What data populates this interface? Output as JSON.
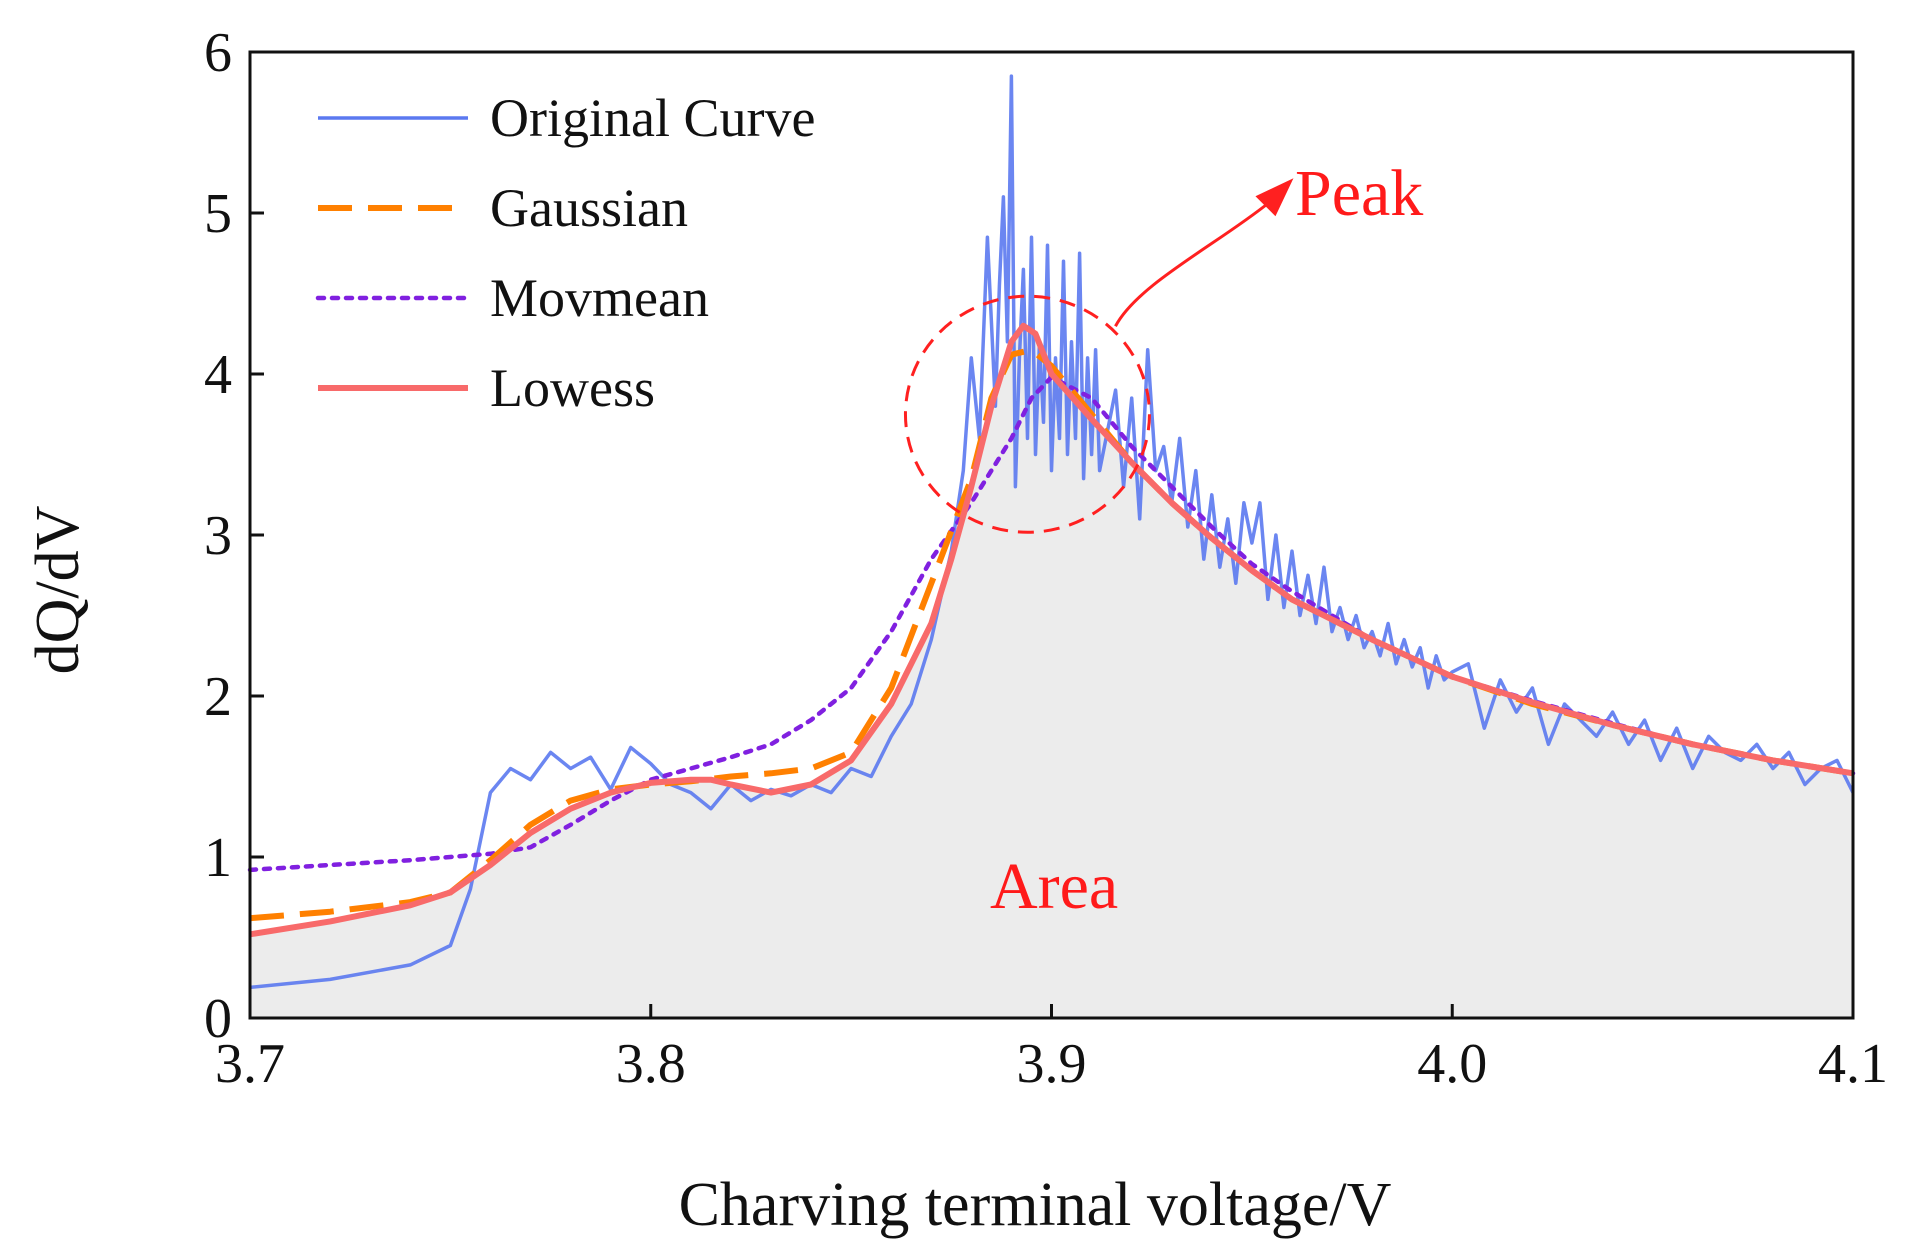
{
  "chart_data": {
    "type": "line",
    "title": "",
    "xlabel": "Charving terminal voltage/V",
    "ylabel": "dQ/dV",
    "xlim": [
      3.7,
      4.1
    ],
    "ylim": [
      0,
      6
    ],
    "xticks": [
      3.7,
      3.8,
      3.9,
      4.0,
      4.1
    ],
    "xtick_labels": [
      "3.7",
      "3.8",
      "3.9",
      "4.0",
      "4.1"
    ],
    "yticks": [
      0,
      1,
      2,
      3,
      4,
      5,
      6
    ],
    "ytick_labels": [
      "0",
      "1",
      "2",
      "3",
      "4",
      "5",
      "6"
    ],
    "grid": false,
    "legend_position": "top-left",
    "annotations": {
      "peak": {
        "text": "Peak",
        "center": [
          3.894,
          3.75
        ]
      },
      "area": {
        "text": "Area"
      }
    },
    "series": [
      {
        "name": "Original Curve",
        "color": "#5b79f0",
        "style": "solid",
        "x": [
          3.7,
          3.72,
          3.74,
          3.75,
          3.755,
          3.76,
          3.765,
          3.77,
          3.775,
          3.78,
          3.785,
          3.79,
          3.795,
          3.8,
          3.805,
          3.81,
          3.815,
          3.82,
          3.825,
          3.83,
          3.835,
          3.84,
          3.845,
          3.85,
          3.855,
          3.86,
          3.865,
          3.87,
          3.875,
          3.878,
          3.88,
          3.882,
          3.884,
          3.886,
          3.887,
          3.888,
          3.889,
          3.89,
          3.891,
          3.892,
          3.893,
          3.894,
          3.895,
          3.896,
          3.897,
          3.898,
          3.899,
          3.9,
          3.901,
          3.902,
          3.903,
          3.904,
          3.905,
          3.906,
          3.907,
          3.908,
          3.909,
          3.91,
          3.911,
          3.912,
          3.914,
          3.916,
          3.918,
          3.92,
          3.922,
          3.924,
          3.926,
          3.928,
          3.93,
          3.932,
          3.934,
          3.936,
          3.938,
          3.94,
          3.942,
          3.944,
          3.946,
          3.948,
          3.95,
          3.952,
          3.954,
          3.956,
          3.958,
          3.96,
          3.962,
          3.964,
          3.966,
          3.968,
          3.97,
          3.972,
          3.974,
          3.976,
          3.978,
          3.98,
          3.982,
          3.984,
          3.986,
          3.988,
          3.99,
          3.992,
          3.994,
          3.996,
          3.998,
          4.0,
          4.004,
          4.008,
          4.012,
          4.016,
          4.02,
          4.024,
          4.028,
          4.032,
          4.036,
          4.04,
          4.044,
          4.048,
          4.052,
          4.056,
          4.06,
          4.064,
          4.068,
          4.072,
          4.076,
          4.08,
          4.084,
          4.088,
          4.092,
          4.096,
          4.1
        ],
        "y": [
          0.19,
          0.24,
          0.33,
          0.45,
          0.8,
          1.4,
          1.55,
          1.48,
          1.65,
          1.55,
          1.62,
          1.42,
          1.68,
          1.58,
          1.45,
          1.4,
          1.3,
          1.45,
          1.35,
          1.42,
          1.38,
          1.45,
          1.4,
          1.55,
          1.5,
          1.75,
          1.95,
          2.35,
          2.9,
          3.4,
          4.1,
          3.6,
          4.85,
          3.8,
          4.55,
          5.1,
          4.2,
          5.85,
          3.3,
          4.1,
          4.65,
          3.6,
          4.85,
          3.5,
          4.2,
          3.7,
          4.8,
          3.4,
          4.1,
          3.6,
          4.7,
          3.5,
          4.2,
          3.6,
          4.75,
          3.35,
          4.1,
          3.5,
          4.15,
          3.4,
          3.65,
          3.9,
          3.3,
          3.85,
          3.1,
          4.15,
          3.4,
          3.55,
          3.2,
          3.6,
          3.05,
          3.4,
          2.85,
          3.25,
          2.8,
          3.1,
          2.7,
          3.2,
          2.95,
          3.2,
          2.6,
          3.0,
          2.55,
          2.9,
          2.5,
          2.75,
          2.45,
          2.8,
          2.4,
          2.55,
          2.35,
          2.5,
          2.3,
          2.4,
          2.25,
          2.45,
          2.2,
          2.35,
          2.18,
          2.3,
          2.05,
          2.25,
          2.1,
          2.15,
          2.2,
          1.8,
          2.1,
          1.9,
          2.05,
          1.7,
          1.95,
          1.85,
          1.75,
          1.9,
          1.7,
          1.85,
          1.6,
          1.8,
          1.55,
          1.75,
          1.65,
          1.6,
          1.7,
          1.55,
          1.65,
          1.45,
          1.55,
          1.6,
          1.4
        ]
      },
      {
        "name": "Gaussian",
        "color": "#ff8000",
        "style": "dashed",
        "x": [
          3.7,
          3.72,
          3.74,
          3.75,
          3.76,
          3.77,
          3.78,
          3.79,
          3.8,
          3.81,
          3.82,
          3.83,
          3.84,
          3.85,
          3.86,
          3.87,
          3.88,
          3.885,
          3.89,
          3.895,
          3.9,
          3.91,
          3.92,
          3.93,
          3.94,
          3.95,
          3.96,
          3.98,
          4.0,
          4.02,
          4.04,
          4.06,
          4.08,
          4.1
        ],
        "y": [
          0.62,
          0.66,
          0.72,
          0.78,
          0.98,
          1.2,
          1.35,
          1.42,
          1.45,
          1.47,
          1.5,
          1.52,
          1.55,
          1.65,
          2.05,
          2.7,
          3.35,
          3.85,
          4.12,
          4.15,
          4.05,
          3.75,
          3.45,
          3.2,
          2.98,
          2.78,
          2.6,
          2.35,
          2.12,
          1.95,
          1.82,
          1.7,
          1.6,
          1.52
        ]
      },
      {
        "name": "Movmean",
        "color": "#8020e0",
        "style": "dotted",
        "x": [
          3.7,
          3.72,
          3.74,
          3.75,
          3.76,
          3.77,
          3.78,
          3.79,
          3.8,
          3.81,
          3.82,
          3.83,
          3.84,
          3.85,
          3.86,
          3.87,
          3.88,
          3.89,
          3.895,
          3.9,
          3.91,
          3.92,
          3.93,
          3.94,
          3.95,
          3.96,
          3.98,
          4.0,
          4.02,
          4.04,
          4.06,
          4.08,
          4.1
        ],
        "y": [
          0.92,
          0.95,
          0.98,
          1.0,
          1.02,
          1.06,
          1.2,
          1.35,
          1.48,
          1.55,
          1.62,
          1.7,
          1.85,
          2.05,
          2.4,
          2.85,
          3.2,
          3.6,
          3.85,
          3.98,
          3.85,
          3.55,
          3.3,
          3.05,
          2.82,
          2.65,
          2.35,
          2.12,
          1.97,
          1.83,
          1.7,
          1.6,
          1.52
        ]
      },
      {
        "name": "Lowess",
        "color": "#f86a6a",
        "style": "solid",
        "x": [
          3.7,
          3.72,
          3.74,
          3.75,
          3.76,
          3.77,
          3.78,
          3.79,
          3.8,
          3.81,
          3.815,
          3.82,
          3.83,
          3.84,
          3.85,
          3.86,
          3.87,
          3.875,
          3.88,
          3.885,
          3.89,
          3.893,
          3.896,
          3.9,
          3.91,
          3.92,
          3.93,
          3.94,
          3.95,
          3.96,
          3.98,
          4.0,
          4.02,
          4.04,
          4.06,
          4.08,
          4.1
        ],
        "y": [
          0.52,
          0.6,
          0.7,
          0.78,
          0.95,
          1.15,
          1.3,
          1.4,
          1.46,
          1.48,
          1.48,
          1.45,
          1.4,
          1.45,
          1.6,
          1.95,
          2.45,
          2.85,
          3.3,
          3.8,
          4.2,
          4.3,
          4.25,
          4.0,
          3.72,
          3.45,
          3.2,
          2.98,
          2.78,
          2.6,
          2.35,
          2.12,
          1.96,
          1.82,
          1.7,
          1.6,
          1.52
        ]
      }
    ]
  }
}
